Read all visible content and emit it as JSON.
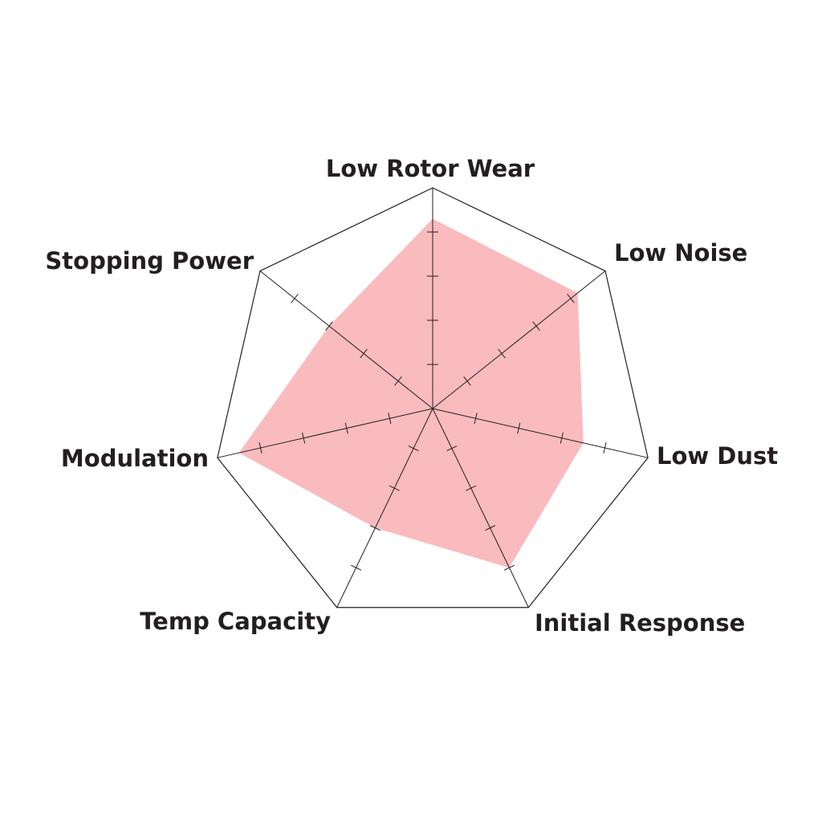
{
  "chart_data": {
    "type": "radar",
    "title": "",
    "axes": [
      "Low Rotor Wear",
      "Low Noise",
      "Low Dust",
      "Initial Response",
      "Temp Capacity",
      "Modulation",
      "Stopping Power"
    ],
    "rlim": [
      0,
      5
    ],
    "ticks_per_axis": 5,
    "grid": "heptagon outline with tick marks on spokes",
    "series": [
      {
        "values": [
          4.3,
          4.2,
          3.5,
          4.0,
          3.0,
          4.5,
          3.0
        ],
        "color": "#f9bbbe"
      }
    ],
    "line_color": "#231f20",
    "legend": "none"
  }
}
